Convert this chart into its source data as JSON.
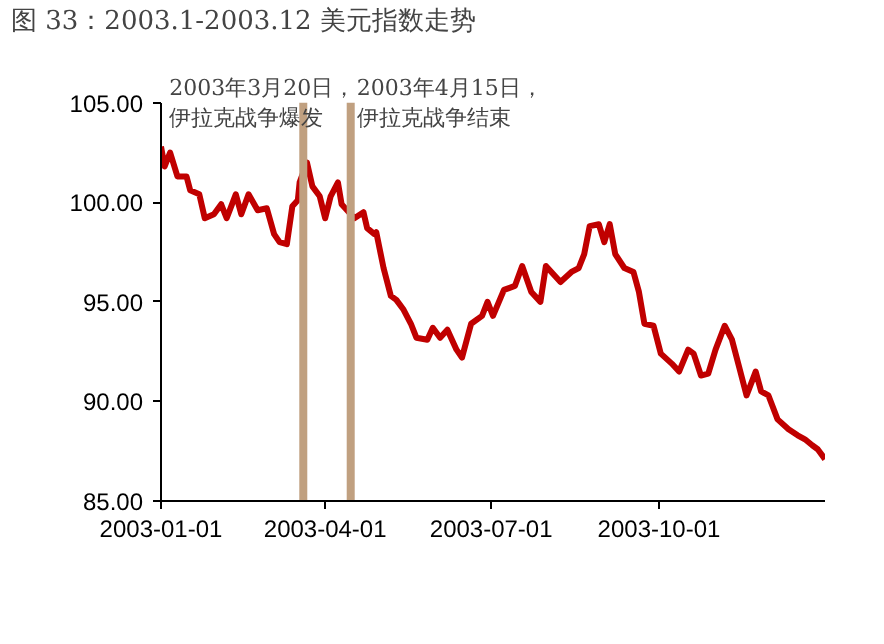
{
  "chart_data": {
    "type": "line",
    "title": "图 33：2003.1-2003.12 美元指数走势",
    "x": [
      "2003-01-01",
      "2003-01-03",
      "2003-01-06",
      "2003-01-10",
      "2003-01-15",
      "2003-01-17",
      "2003-01-22",
      "2003-01-25",
      "2003-01-30",
      "2003-02-03",
      "2003-02-06",
      "2003-02-11",
      "2003-02-14",
      "2003-02-18",
      "2003-02-23",
      "2003-02-28",
      "2003-03-04",
      "2003-03-07",
      "2003-03-11",
      "2003-03-14",
      "2003-03-17",
      "2003-03-18",
      "2003-03-22",
      "2003-03-25",
      "2003-03-29",
      "2003-04-01",
      "2003-04-04",
      "2003-04-08",
      "2003-04-10",
      "2003-04-17",
      "2003-04-22",
      "2003-04-24",
      "2003-04-28",
      "2003-04-29",
      "2003-05-03",
      "2003-05-07",
      "2003-05-10",
      "2003-05-14",
      "2003-05-18",
      "2003-05-21",
      "2003-05-27",
      "2003-05-30",
      "2003-06-03",
      "2003-06-07",
      "2003-06-12",
      "2003-06-15",
      "2003-06-20",
      "2003-06-26",
      "2003-06-29",
      "2003-07-02",
      "2003-07-08",
      "2003-07-14",
      "2003-07-18",
      "2003-07-23",
      "2003-07-28",
      "2003-07-31",
      "2003-08-05",
      "2003-08-08",
      "2003-08-14",
      "2003-08-18",
      "2003-08-21",
      "2003-08-24",
      "2003-08-29",
      "2003-09-01",
      "2003-09-04",
      "2003-09-07",
      "2003-09-12",
      "2003-09-17",
      "2003-09-20",
      "2003-09-23",
      "2003-09-28",
      "2003-10-02",
      "2003-10-08",
      "2003-10-12",
      "2003-10-17",
      "2003-10-20",
      "2003-10-24",
      "2003-10-28",
      "2003-11-01",
      "2003-11-06",
      "2003-11-10",
      "2003-11-14",
      "2003-11-18",
      "2003-11-23",
      "2003-11-26",
      "2003-11-30",
      "2003-12-05",
      "2003-12-11",
      "2003-12-16",
      "2003-12-20",
      "2003-12-24",
      "2003-12-27",
      "2003-12-31"
    ],
    "series": [
      {
        "color": "#c00000",
        "values": [
          102.8,
          101.8,
          102.5,
          101.3,
          101.3,
          100.6,
          100.4,
          99.2,
          99.4,
          99.9,
          99.2,
          100.4,
          99.4,
          100.4,
          99.6,
          99.7,
          98.4,
          98.0,
          97.9,
          99.8,
          100.1,
          101.0,
          102.0,
          100.8,
          100.3,
          99.2,
          100.3,
          101.0,
          99.9,
          99.2,
          99.5,
          98.7,
          98.4,
          98.5,
          96.7,
          95.3,
          95.1,
          94.6,
          93.9,
          93.2,
          93.1,
          93.7,
          93.2,
          93.6,
          92.6,
          92.2,
          93.9,
          94.3,
          95.0,
          94.3,
          95.6,
          95.8,
          96.8,
          95.5,
          95.0,
          96.8,
          96.3,
          96.0,
          96.5,
          96.7,
          97.4,
          98.8,
          98.9,
          98.0,
          98.9,
          97.4,
          96.7,
          96.5,
          95.5,
          93.9,
          93.8,
          92.4,
          91.9,
          91.5,
          92.6,
          92.4,
          91.3,
          91.4,
          92.6,
          93.8,
          93.1,
          91.7,
          90.3,
          91.5,
          90.5,
          90.3,
          89.1,
          88.6,
          88.3,
          88.1,
          87.8,
          87.6,
          87.1
        ]
      }
    ],
    "xlim": [
      "2003-01-01",
      "2003-12-31"
    ],
    "xticks": [
      "2003-01-01",
      "2003-04-01",
      "2003-07-01",
      "2003-10-01"
    ],
    "ylim": [
      85,
      105
    ],
    "yticks": [
      {
        "value": 85,
        "label": "85.00"
      },
      {
        "value": 90,
        "label": "90.00"
      },
      {
        "value": 95,
        "label": "95.00"
      },
      {
        "value": 100,
        "label": "100.00"
      },
      {
        "value": 105,
        "label": "105.00"
      }
    ],
    "ref_lines": [
      {
        "axis": "x",
        "value": "2003-03-20",
        "label": "2003年3月20日，伊拉克战争爆发",
        "color": "#c0a080"
      },
      {
        "axis": "x",
        "value": "2003-04-15",
        "label": "2003年4月15日，伊拉克战争结束",
        "color": "#c0a080"
      }
    ],
    "grid": false,
    "marker": "none",
    "line_style": "solid"
  }
}
